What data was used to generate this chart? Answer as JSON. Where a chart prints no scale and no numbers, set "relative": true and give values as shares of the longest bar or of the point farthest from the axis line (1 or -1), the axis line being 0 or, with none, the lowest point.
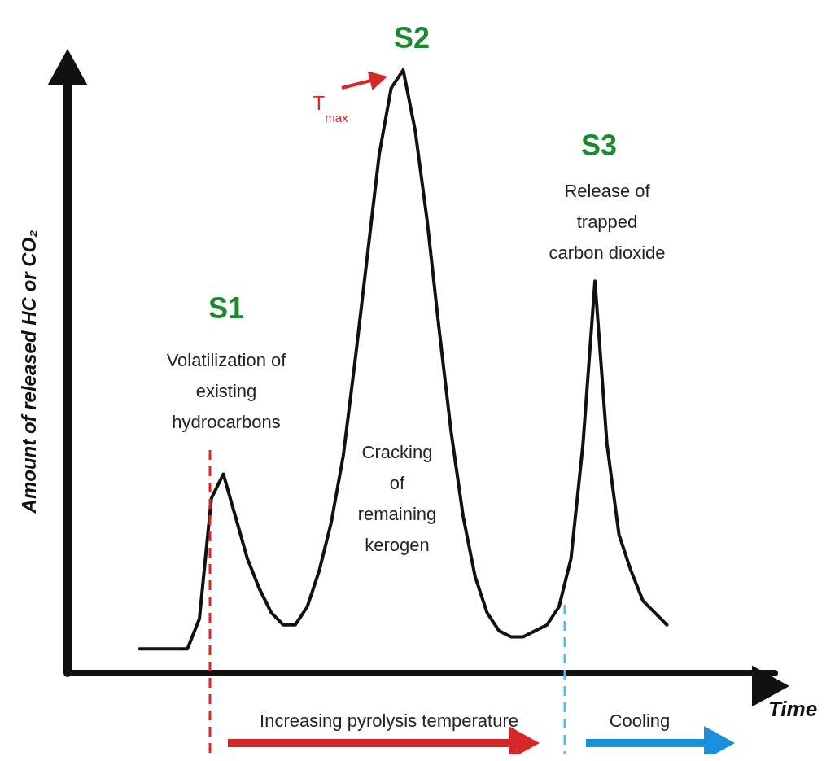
{
  "chart_data": {
    "type": "line",
    "relative": true,
    "xlabel": "Time",
    "ylabel": "Amount of released HC or CO₂",
    "categories": [
      null,
      null,
      null,
      null,
      null,
      null,
      null,
      null,
      null,
      null,
      null,
      null,
      null,
      null,
      null,
      null,
      null,
      null,
      null,
      null,
      null,
      null,
      null,
      null,
      null,
      null,
      null,
      null,
      null,
      null,
      null,
      null,
      null,
      null,
      null,
      null,
      null,
      null,
      null,
      null,
      null,
      null,
      null,
      null,
      null
    ],
    "series": [
      {
        "color": "#111111",
        "values": [
          0.04,
          0.04,
          0.04,
          0.04,
          0.04,
          0.09,
          0.29,
          0.33,
          0.26,
          0.19,
          0.14,
          0.1,
          0.08,
          0.08,
          0.11,
          0.17,
          0.25,
          0.36,
          0.52,
          0.69,
          0.86,
          0.97,
          1.0,
          0.9,
          0.75,
          0.57,
          0.4,
          0.26,
          0.16,
          0.1,
          0.07,
          0.06,
          0.06,
          0.07,
          0.08,
          0.11,
          0.19,
          0.38,
          0.65,
          0.38,
          0.23,
          0.17,
          0.12,
          0.1,
          0.08
        ]
      }
    ],
    "marker": "none",
    "line_style": "solid",
    "grid": false,
    "annotations": [
      "S1",
      "Volatilization of\nexisting\nhydrocarbons",
      "S2",
      "T$_{max}$",
      "S3",
      "Release of\ntrapped\ncarbon dioxide",
      "Cracking\nof\nremaining\nkerogen",
      "Increasing pyrolysis temperature",
      "Cooling"
    ]
  }
}
